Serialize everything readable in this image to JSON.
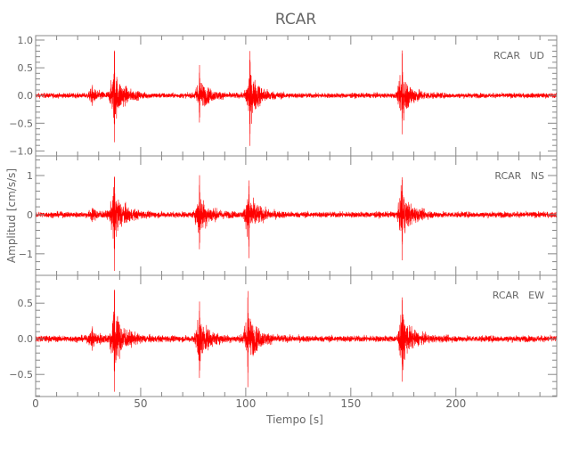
{
  "chart_data": {
    "type": "line",
    "title": "RCAR",
    "xlabel": "Tiempo [s]",
    "ylabel": "Amplitud [cm/s/s]",
    "xlim": [
      0,
      248
    ],
    "x_ticks": [
      0,
      50,
      100,
      150,
      200
    ],
    "x_tick_labels": [
      "0",
      "50",
      "100",
      "150",
      "200"
    ],
    "grid": false,
    "line_color": "#ff0000",
    "panels": [
      {
        "label": "RCAR   UD",
        "ylim": [
          -1.09,
          1.08
        ],
        "y_ticks": [
          1.0,
          0.5,
          0.0,
          -0.5,
          -1.0
        ],
        "y_tick_labels": [
          "1.0",
          "0.5",
          "0.0",
          "−0.5",
          "−1.0"
        ],
        "noise": 0.03,
        "events": [
          {
            "t": 27,
            "peak": 0.22,
            "trough": -0.2
          },
          {
            "t": 37.5,
            "peak": 1.0,
            "trough": -0.85
          },
          {
            "t": 78,
            "peak": 0.6,
            "trough": -0.55
          },
          {
            "t": 102,
            "peak": 0.9,
            "trough": -1.0
          },
          {
            "t": 174.5,
            "peak": 0.98,
            "trough": -0.72
          }
        ]
      },
      {
        "label": "RCAR   NS",
        "ylim": [
          -1.55,
          1.5
        ],
        "y_ticks": [
          1,
          0,
          -1
        ],
        "y_tick_labels": [
          "1",
          "0",
          "−1"
        ],
        "noise": 0.05,
        "events": [
          {
            "t": 27,
            "peak": 0.2,
            "trough": -0.2
          },
          {
            "t": 37.5,
            "peak": 1.2,
            "trough": -1.45
          },
          {
            "t": 78,
            "peak": 1.1,
            "trough": -1.0
          },
          {
            "t": 101.5,
            "peak": 1.0,
            "trough": -1.2
          },
          {
            "t": 174.5,
            "peak": 1.15,
            "trough": -1.2
          }
        ]
      },
      {
        "label": "RCAR   EW",
        "ylim": [
          -0.81,
          0.89
        ],
        "y_ticks": [
          0.5,
          0.0,
          -0.5
        ],
        "y_tick_labels": [
          "0.5",
          "0.0",
          "−0.5"
        ],
        "noise": 0.03,
        "events": [
          {
            "t": 27,
            "peak": 0.2,
            "trough": -0.18
          },
          {
            "t": 37.5,
            "peak": 0.85,
            "trough": -0.75
          },
          {
            "t": 78,
            "peak": 0.57,
            "trough": -0.62
          },
          {
            "t": 101,
            "peak": 0.78,
            "trough": -0.72
          },
          {
            "t": 174.5,
            "peak": 0.7,
            "trough": -0.62
          }
        ]
      }
    ]
  }
}
